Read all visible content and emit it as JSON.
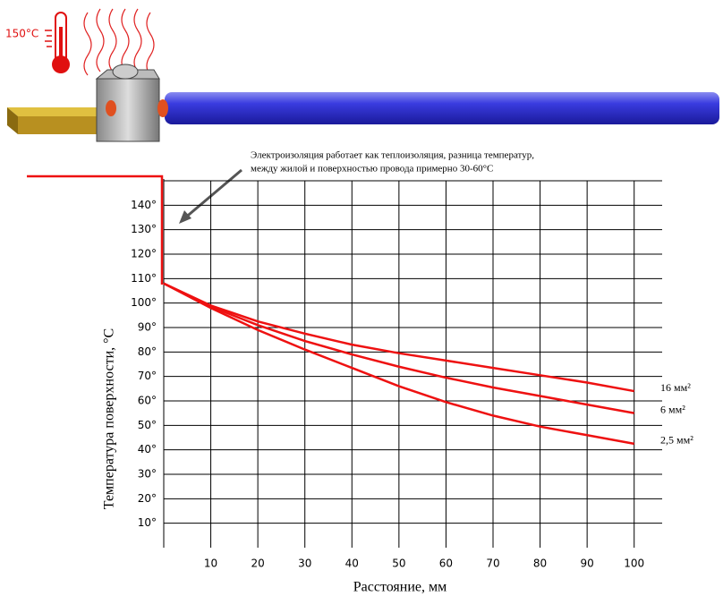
{
  "illustration_label": "150°C",
  "chart_data": {
    "type": "line",
    "x_label": "Расстояние, мм",
    "y_label": "Температура поверхности, °C",
    "annotations": [
      "Электроизоляция работает как теплоизоляция, разница температур,",
      "между жилой и поверхностью провода примерно 30-60°C"
    ],
    "x": [
      0,
      10,
      20,
      30,
      40,
      50,
      60,
      70,
      80,
      90,
      100
    ],
    "series": [
      {
        "name": "16 мм²",
        "color": "#ee1111",
        "values": [
          108,
          99,
          92.5,
          87.5,
          83,
          79.5,
          76.5,
          73.5,
          70.5,
          67.5,
          64
        ]
      },
      {
        "name": "6 мм²",
        "color": "#ee1111",
        "values": [
          108,
          98.5,
          91,
          84.5,
          79,
          74,
          69.5,
          65.5,
          62,
          58.5,
          55
        ]
      },
      {
        "name": "2,5 мм²",
        "color": "#ee1111",
        "values": [
          108,
          98,
          89,
          81,
          73.5,
          66,
          59.5,
          54,
          49.5,
          46,
          42.5
        ]
      }
    ],
    "xlim": [
      0,
      105
    ],
    "ylim": [
      0,
      150
    ],
    "xticks": [
      10,
      20,
      30,
      40,
      50,
      60,
      70,
      80,
      90,
      100
    ],
    "yticks": [
      {
        "value": 10,
        "label": "10°"
      },
      {
        "value": 20,
        "label": "20°"
      },
      {
        "value": 30,
        "label": "30°"
      },
      {
        "value": 40,
        "label": "40°"
      },
      {
        "value": 50,
        "label": "50°"
      },
      {
        "value": 60,
        "label": "60°"
      },
      {
        "value": 70,
        "label": "70°"
      },
      {
        "value": 80,
        "label": "80°"
      },
      {
        "value": 90,
        "label": "90°"
      },
      {
        "value": 100,
        "label": "100°"
      },
      {
        "value": 110,
        "label": "110°"
      },
      {
        "value": 120,
        "label": "120°"
      },
      {
        "value": 130,
        "label": "130°"
      },
      {
        "value": 140,
        "label": "140°"
      }
    ],
    "grid": true
  }
}
